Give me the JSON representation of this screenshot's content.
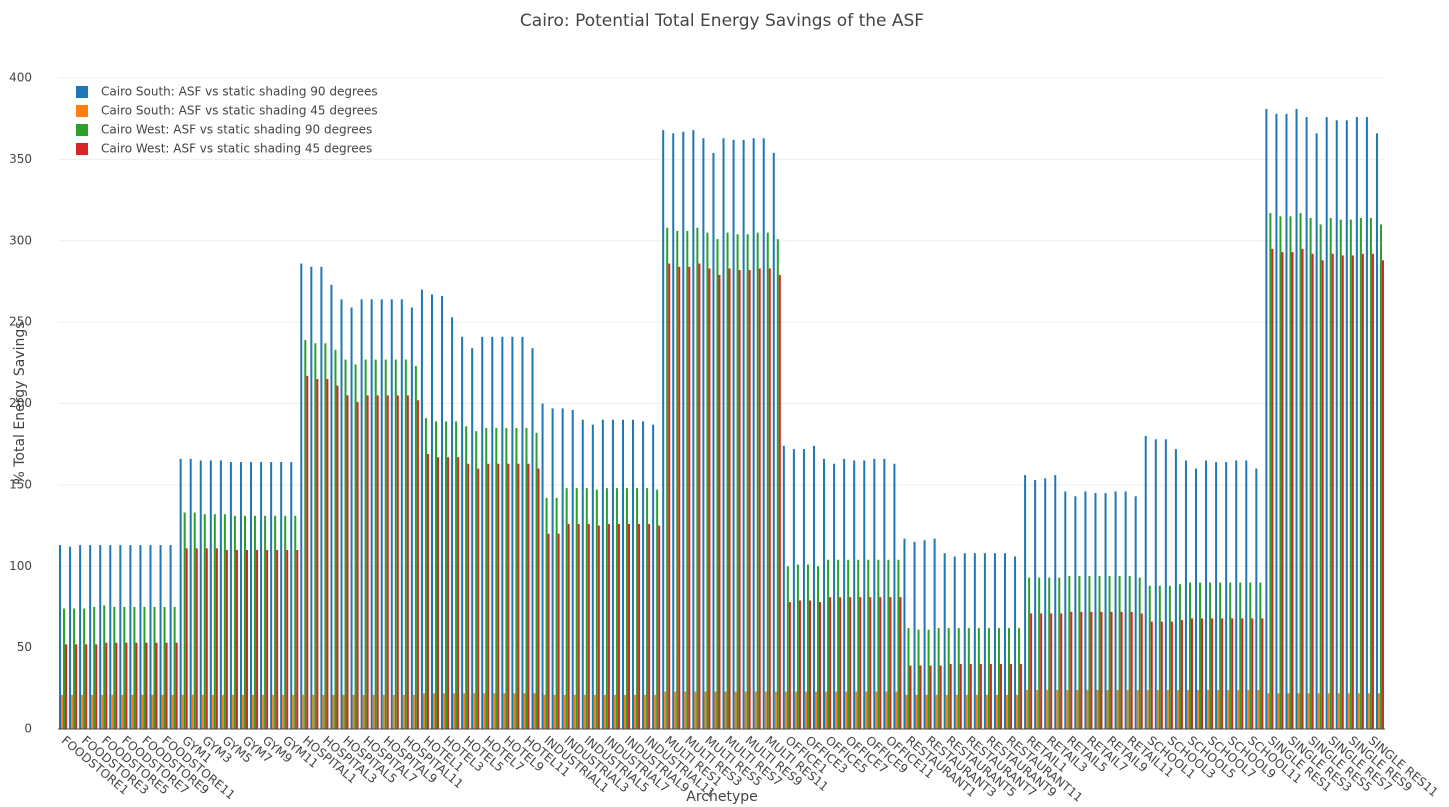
{
  "chart_data": {
    "type": "bar",
    "title": "Cairo: Potential Total Energy Savings of the ASF",
    "x_label": "Archetype",
    "y_label": "% Total Energy Savings",
    "categories": [
      "FOODSTORE1",
      null,
      "FOODSTORE3",
      null,
      "FOODSTORE5",
      null,
      "FOODSTORE7",
      null,
      "FOODSTORE9",
      null,
      "FOODSTORE11",
      null,
      "GYM1",
      null,
      "GYM3",
      null,
      "GYM5",
      null,
      "GYM7",
      null,
      "GYM9",
      null,
      "GYM11",
      null,
      "HOSPITAL1",
      null,
      "HOSPITAL3",
      null,
      "HOSPITAL5",
      null,
      "HOSPITAL7",
      null,
      "HOSPITAL9",
      null,
      "HOSPITAL11",
      null,
      "HOTEL1",
      null,
      "HOTEL3",
      null,
      "HOTEL5",
      null,
      "HOTEL7",
      null,
      "HOTEL9",
      null,
      "HOTEL11",
      null,
      "INDUSTRIAL1",
      null,
      "INDUSTRIAL3",
      null,
      "INDUSTRIAL5",
      null,
      "INDUSTRIAL7",
      null,
      "INDUSTRIAL9",
      null,
      "INDUSTRIAL11",
      null,
      "MULTI RES1",
      null,
      "MULTI RES3",
      null,
      "MULTI RES5",
      null,
      "MULTI RES7",
      null,
      "MULTI RES9",
      null,
      "MULTI RES11",
      null,
      "OFFICE1",
      null,
      "OFFICE3",
      null,
      "OFFICE5",
      null,
      "OFFICE7",
      null,
      "OFFICE9",
      null,
      "OFFICE11",
      null,
      "RESTAURANT1",
      null,
      "RESTAURANT3",
      null,
      "RESTAURANT5",
      null,
      "RESTAURANT7",
      null,
      "RESTAURANT9",
      null,
      "RESTAURANT11",
      null,
      "RETAIL1",
      null,
      "RETAIL3",
      null,
      "RETAIL5",
      null,
      "RETAIL7",
      null,
      "RETAIL9",
      null,
      "RETAIL11",
      null,
      "SCHOOL1",
      null,
      "SCHOOL3",
      null,
      "SCHOOL5",
      null,
      "SCHOOL7",
      null,
      "SCHOOL9",
      null,
      "SCHOOL11",
      null,
      "SINGLE RES1",
      null,
      "SINGLE RES3",
      null,
      "SINGLE RES5",
      null,
      "SINGLE RES7",
      null,
      "SINGLE RES9",
      null,
      "SINGLE RES11",
      null
    ],
    "series": [
      {
        "name": "Cairo South: ASF vs static shading 90 degrees",
        "color": "#1f77b4",
        "values": [
          113,
          112,
          113,
          113,
          113,
          113,
          113,
          113,
          113,
          113,
          113,
          113,
          166,
          166,
          165,
          165,
          165,
          164,
          164,
          164,
          164,
          164,
          164,
          164,
          286,
          284,
          284,
          273,
          264,
          259,
          264,
          264,
          264,
          264,
          264,
          259,
          270,
          267,
          266,
          253,
          241,
          234,
          241,
          241,
          241,
          241,
          241,
          234,
          200,
          197,
          197,
          196,
          190,
          187,
          190,
          190,
          190,
          190,
          189,
          187,
          368,
          366,
          367,
          368,
          363,
          354,
          363,
          362,
          362,
          363,
          363,
          354,
          174,
          172,
          172,
          174,
          166,
          163,
          166,
          165,
          165,
          166,
          166,
          163,
          117,
          115,
          116,
          117,
          108,
          106,
          108,
          108,
          108,
          108,
          108,
          106,
          156,
          153,
          154,
          156,
          146,
          143,
          146,
          145,
          145,
          146,
          146,
          143,
          180,
          178,
          178,
          172,
          165,
          160,
          165,
          164,
          164,
          165,
          165,
          160,
          381,
          378,
          378,
          381,
          376,
          366,
          376,
          374,
          374,
          376,
          376,
          366
        ]
      },
      {
        "name": "Cairo South: ASF vs static shading 45 degrees",
        "color": "#ff7f0e",
        "values": [
          21,
          21,
          21,
          21,
          21,
          21,
          21,
          21,
          21,
          21,
          21,
          21,
          21,
          21,
          21,
          21,
          21,
          21,
          21,
          21,
          21,
          21,
          21,
          21,
          21,
          21,
          21,
          21,
          21,
          21,
          21,
          21,
          21,
          21,
          21,
          21,
          22,
          22,
          22,
          22,
          22,
          22,
          22,
          22,
          22,
          22,
          22,
          22,
          21,
          21,
          21,
          21,
          21,
          21,
          21,
          21,
          21,
          21,
          21,
          21,
          23,
          23,
          23,
          23,
          23,
          23,
          23,
          23,
          23,
          23,
          23,
          23,
          23,
          23,
          23,
          23,
          23,
          23,
          23,
          23,
          23,
          23,
          23,
          23,
          21,
          21,
          21,
          21,
          21,
          21,
          21,
          21,
          21,
          21,
          21,
          21,
          24,
          24,
          24,
          24,
          24,
          24,
          24,
          24,
          24,
          24,
          24,
          24,
          24,
          24,
          24,
          24,
          24,
          24,
          24,
          24,
          24,
          24,
          24,
          24,
          22,
          22,
          22,
          22,
          22,
          22,
          22,
          22,
          22,
          22,
          22,
          22
        ]
      },
      {
        "name": "Cairo West: ASF vs static shading 90 degrees",
        "color": "#2ca02c",
        "values": [
          74,
          74,
          74,
          75,
          76,
          75,
          75,
          75,
          75,
          75,
          75,
          75,
          133,
          133,
          132,
          132,
          132,
          131,
          131,
          131,
          131,
          131,
          131,
          131,
          239,
          237,
          237,
          233,
          227,
          224,
          227,
          227,
          227,
          227,
          227,
          223,
          191,
          189,
          189,
          189,
          186,
          183,
          185,
          185,
          185,
          185,
          185,
          182,
          142,
          142,
          148,
          148,
          148,
          147,
          148,
          148,
          148,
          148,
          148,
          147,
          308,
          306,
          306,
          308,
          305,
          301,
          305,
          304,
          304,
          305,
          305,
          301,
          100,
          101,
          101,
          100,
          104,
          104,
          104,
          104,
          104,
          104,
          104,
          104,
          62,
          61,
          61,
          62,
          62,
          62,
          62,
          62,
          62,
          62,
          62,
          62,
          93,
          93,
          93,
          93,
          94,
          94,
          94,
          94,
          94,
          94,
          94,
          93,
          88,
          88,
          88,
          89,
          90,
          90,
          90,
          90,
          90,
          90,
          90,
          90,
          317,
          315,
          315,
          317,
          314,
          310,
          314,
          313,
          313,
          314,
          314,
          310
        ]
      },
      {
        "name": "Cairo West: ASF vs static shading 45 degrees",
        "color": "#d62728",
        "values": [
          52,
          52,
          52,
          52,
          53,
          53,
          53,
          53,
          53,
          53,
          53,
          53,
          111,
          111,
          111,
          111,
          110,
          110,
          110,
          110,
          110,
          110,
          110,
          110,
          217,
          215,
          215,
          211,
          205,
          201,
          205,
          205,
          205,
          205,
          205,
          202,
          169,
          167,
          167,
          167,
          163,
          160,
          163,
          163,
          163,
          163,
          163,
          160,
          120,
          120,
          126,
          126,
          126,
          125,
          126,
          126,
          126,
          126,
          126,
          125,
          286,
          284,
          284,
          286,
          283,
          279,
          283,
          282,
          282,
          283,
          283,
          279,
          78,
          79,
          79,
          78,
          81,
          81,
          81,
          81,
          81,
          81,
          81,
          81,
          39,
          39,
          39,
          39,
          40,
          40,
          40,
          40,
          40,
          40,
          40,
          40,
          71,
          71,
          71,
          71,
          72,
          72,
          72,
          72,
          72,
          72,
          72,
          71,
          66,
          66,
          66,
          67,
          68,
          68,
          68,
          68,
          68,
          68,
          68,
          68,
          295,
          293,
          293,
          295,
          292,
          288,
          292,
          291,
          291,
          292,
          292,
          288
        ]
      }
    ],
    "ylim": [
      0,
      400
    ],
    "yticks": [
      0,
      50,
      100,
      150,
      200,
      250,
      300,
      350,
      400
    ],
    "grid": true,
    "legend": "top-left"
  }
}
